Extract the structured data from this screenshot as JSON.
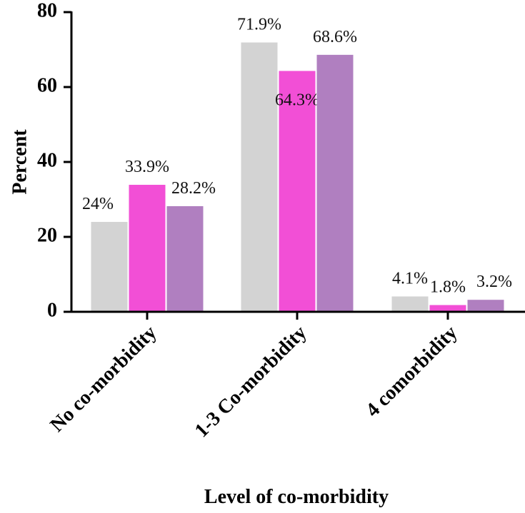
{
  "chart_data": {
    "type": "bar",
    "xlabel": "Level of co-morbidity",
    "ylabel": "Percent",
    "categories": [
      "No co-morbidity",
      "1-3 Co-morbidity",
      "4 comorbidity"
    ],
    "series": [
      {
        "color": "#d3d3d3",
        "values": [
          24,
          71.9,
          4.1
        ],
        "value_labels": [
          "24%",
          "71.9%",
          "4.1%"
        ]
      },
      {
        "color": "#f24fd6",
        "values": [
          33.9,
          64.3,
          1.8
        ],
        "value_labels": [
          "33.9%",
          "64.3%",
          "1.8%"
        ]
      },
      {
        "color": "#b07fc0",
        "values": [
          28.2,
          68.6,
          3.2
        ],
        "value_labels": [
          "28.2%",
          "68.6%",
          "3.2%"
        ]
      }
    ],
    "ylim": [
      0,
      80
    ],
    "yticks": [
      0,
      20,
      40,
      60,
      80
    ]
  }
}
